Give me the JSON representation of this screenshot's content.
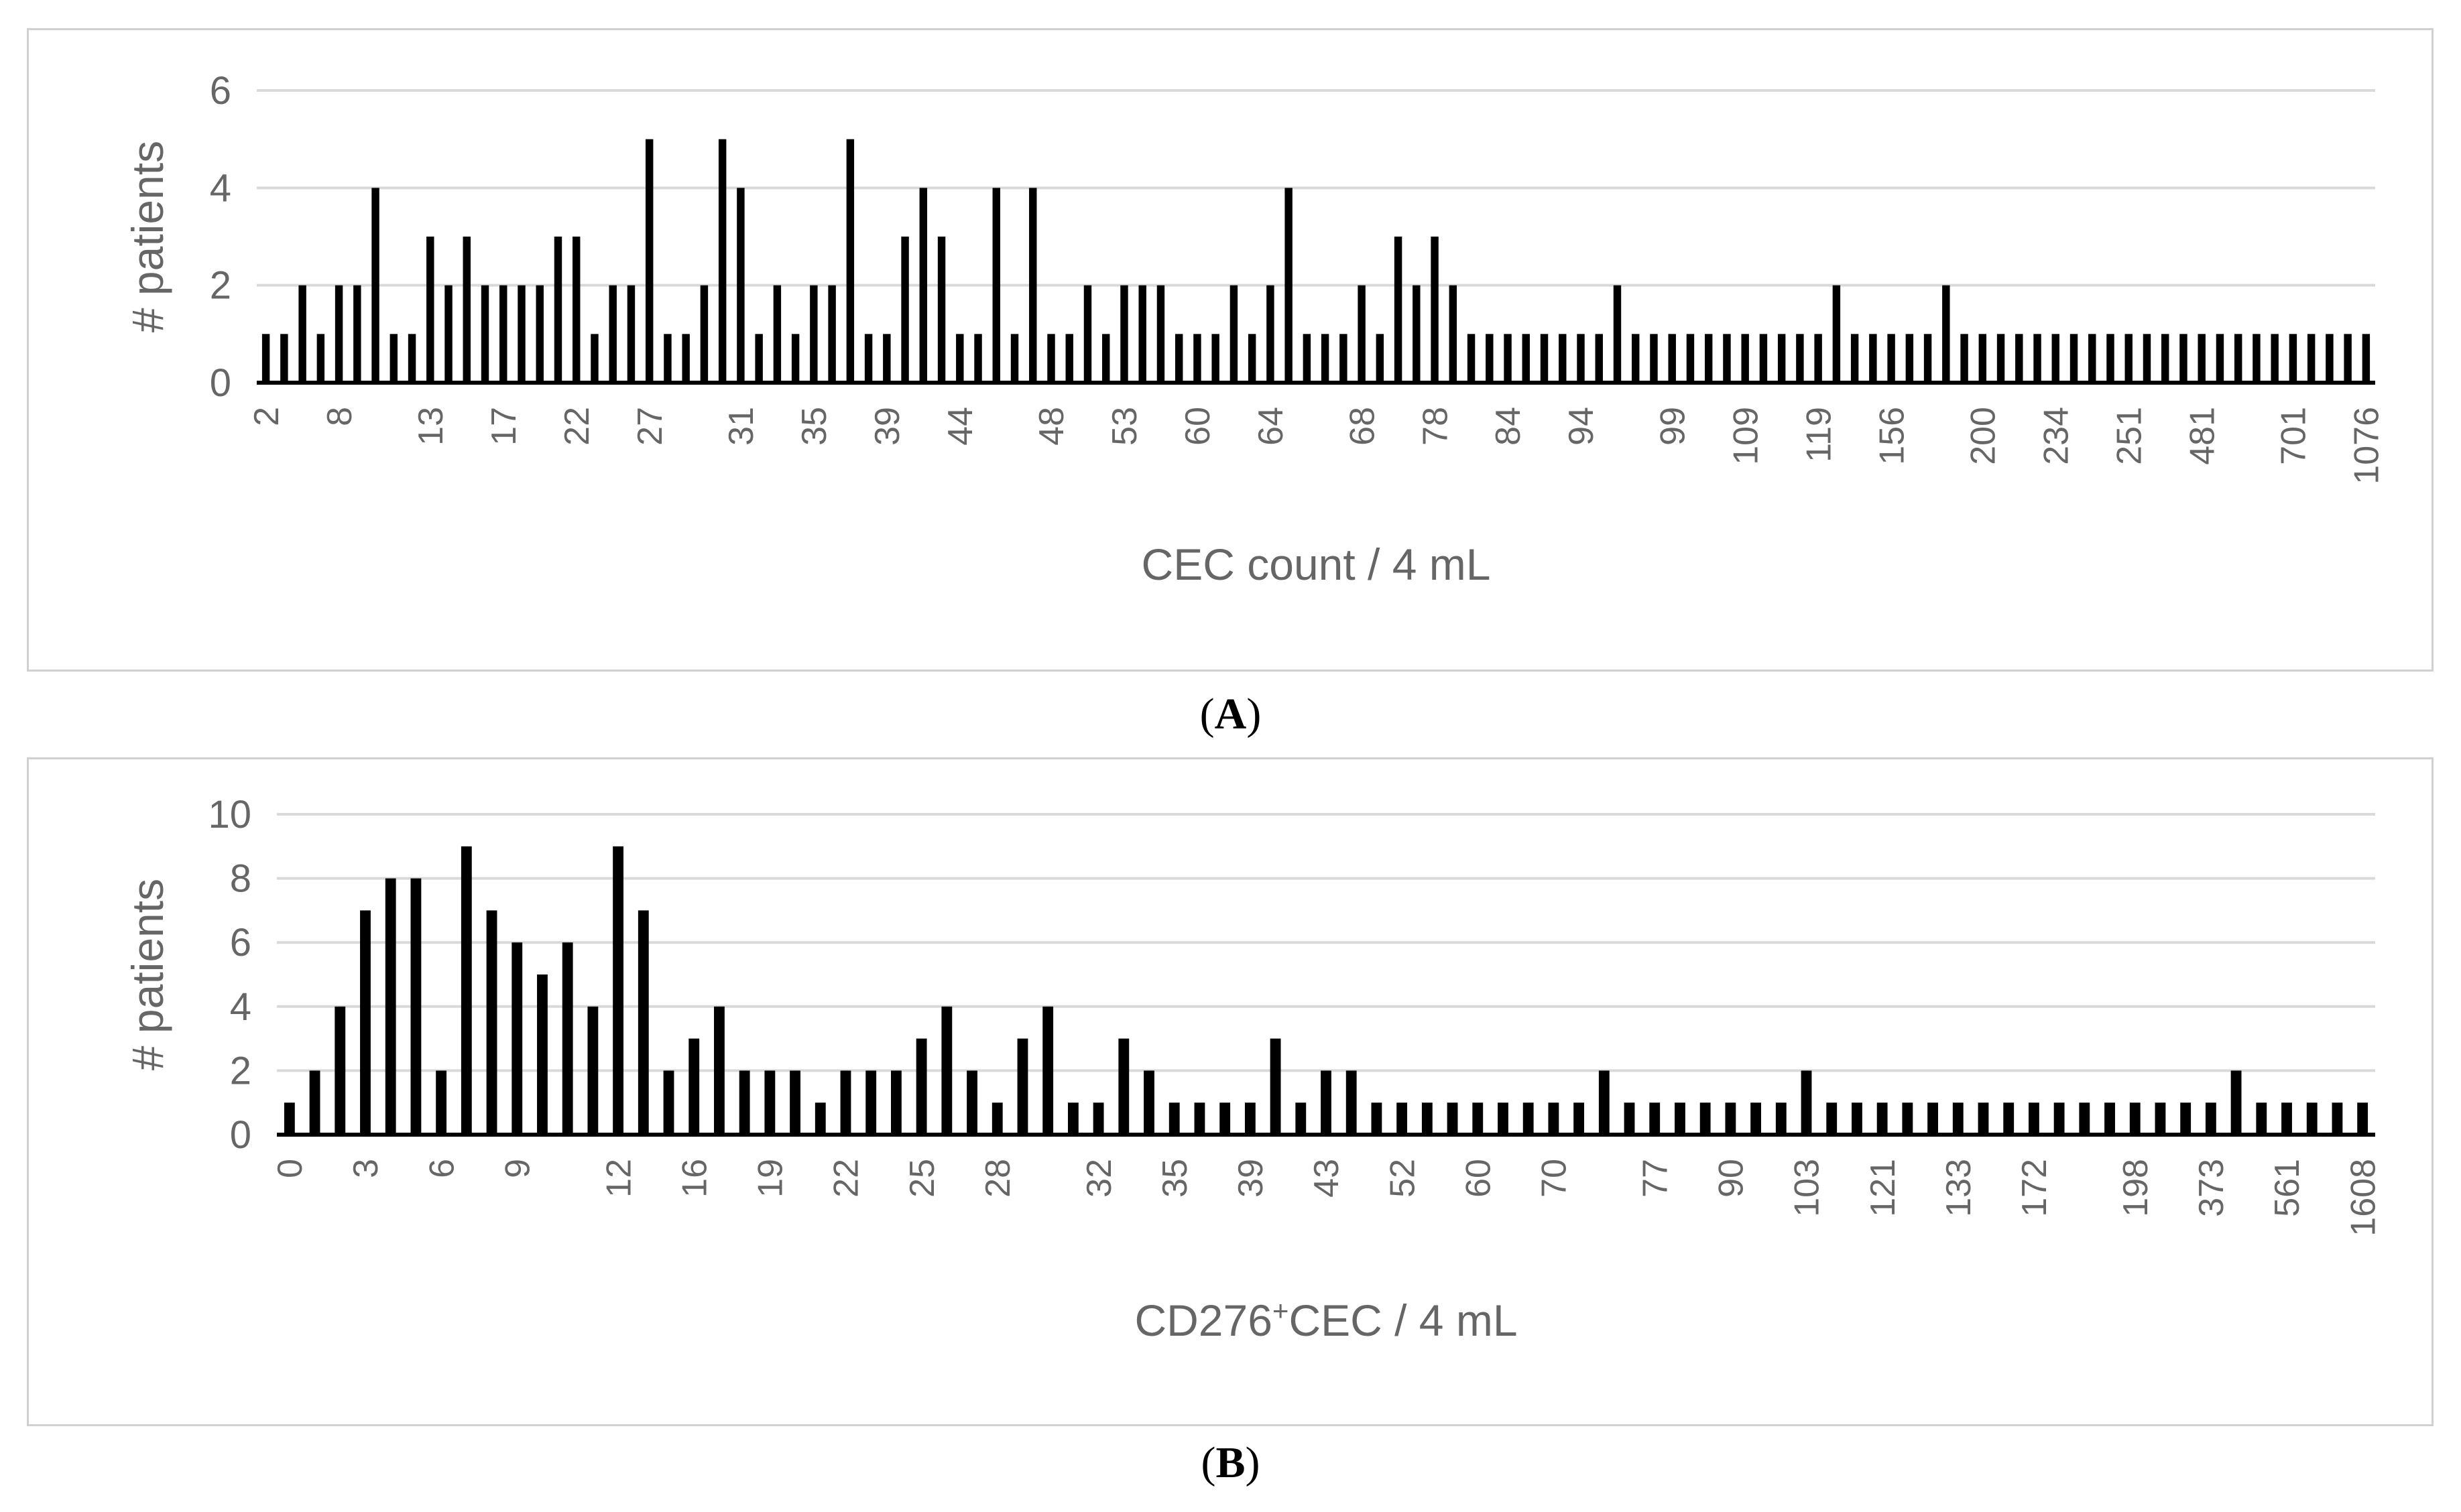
{
  "chart_data": [
    {
      "id": "A",
      "type": "bar",
      "panel_label": "A",
      "xlabel": "CEC count / 4 mL",
      "ylabel": "# patients",
      "ylim": [
        0,
        6
      ],
      "yticks": [
        0,
        2,
        4,
        6
      ],
      "grid": true,
      "x_tick_labels": [
        "2",
        "8",
        "13",
        "17",
        "22",
        "27",
        "31",
        "35",
        "39",
        "44",
        "48",
        "53",
        "60",
        "64",
        "68",
        "78",
        "84",
        "94",
        "99",
        "109",
        "119",
        "156",
        "200",
        "234",
        "251",
        "481",
        "701",
        "1076"
      ],
      "values": [
        1,
        1,
        2,
        1,
        2,
        2,
        4,
        1,
        1,
        3,
        2,
        3,
        2,
        2,
        2,
        2,
        3,
        3,
        1,
        2,
        2,
        5,
        1,
        1,
        2,
        5,
        4,
        1,
        2,
        1,
        2,
        2,
        5,
        1,
        1,
        3,
        4,
        3,
        1,
        1,
        4,
        1,
        4,
        1,
        1,
        2,
        1,
        2,
        2,
        2,
        1,
        1,
        1,
        2,
        1,
        2,
        4,
        1,
        1,
        1,
        2,
        1,
        3,
        2,
        3,
        2,
        1,
        1,
        1,
        1,
        1,
        1,
        1,
        1,
        2,
        1,
        1,
        1,
        1,
        1,
        1,
        1,
        1,
        1,
        1,
        1,
        2,
        1,
        1,
        1,
        1,
        1,
        2,
        1,
        1,
        1,
        1,
        1,
        1,
        1,
        1,
        1,
        1,
        1,
        1,
        1,
        1,
        1,
        1,
        1,
        1,
        1,
        1,
        1,
        1,
        1
      ]
    },
    {
      "id": "B",
      "type": "bar",
      "panel_label": "B",
      "xlabel_main": "CD276",
      "xlabel_sup": "+",
      "xlabel_rest": "CEC / 4 mL",
      "ylabel": "# patients",
      "ylim": [
        0,
        10
      ],
      "yticks": [
        0,
        2,
        4,
        6,
        8,
        10
      ],
      "grid": true,
      "x_tick_labels": [
        "0",
        "3",
        "6",
        "9",
        "12",
        "16",
        "19",
        "22",
        "25",
        "28",
        "32",
        "35",
        "39",
        "43",
        "52",
        "60",
        "70",
        "77",
        "90",
        "103",
        "121",
        "133",
        "172",
        "198",
        "373",
        "561",
        "1608"
      ],
      "values": [
        1,
        2,
        4,
        7,
        8,
        8,
        2,
        9,
        7,
        6,
        5,
        6,
        4,
        9,
        7,
        2,
        3,
        4,
        2,
        2,
        2,
        1,
        2,
        2,
        2,
        3,
        4,
        2,
        1,
        3,
        4,
        1,
        1,
        3,
        2,
        1,
        1,
        1,
        1,
        3,
        1,
        2,
        2,
        1,
        1,
        1,
        1,
        1,
        1,
        1,
        1,
        1,
        2,
        1,
        1,
        1,
        1,
        1,
        1,
        1,
        2,
        1,
        1,
        1,
        1,
        1,
        1,
        1,
        1,
        1,
        1,
        1,
        1,
        1,
        1,
        1,
        1,
        2,
        1,
        1,
        1,
        1,
        1
      ]
    }
  ]
}
